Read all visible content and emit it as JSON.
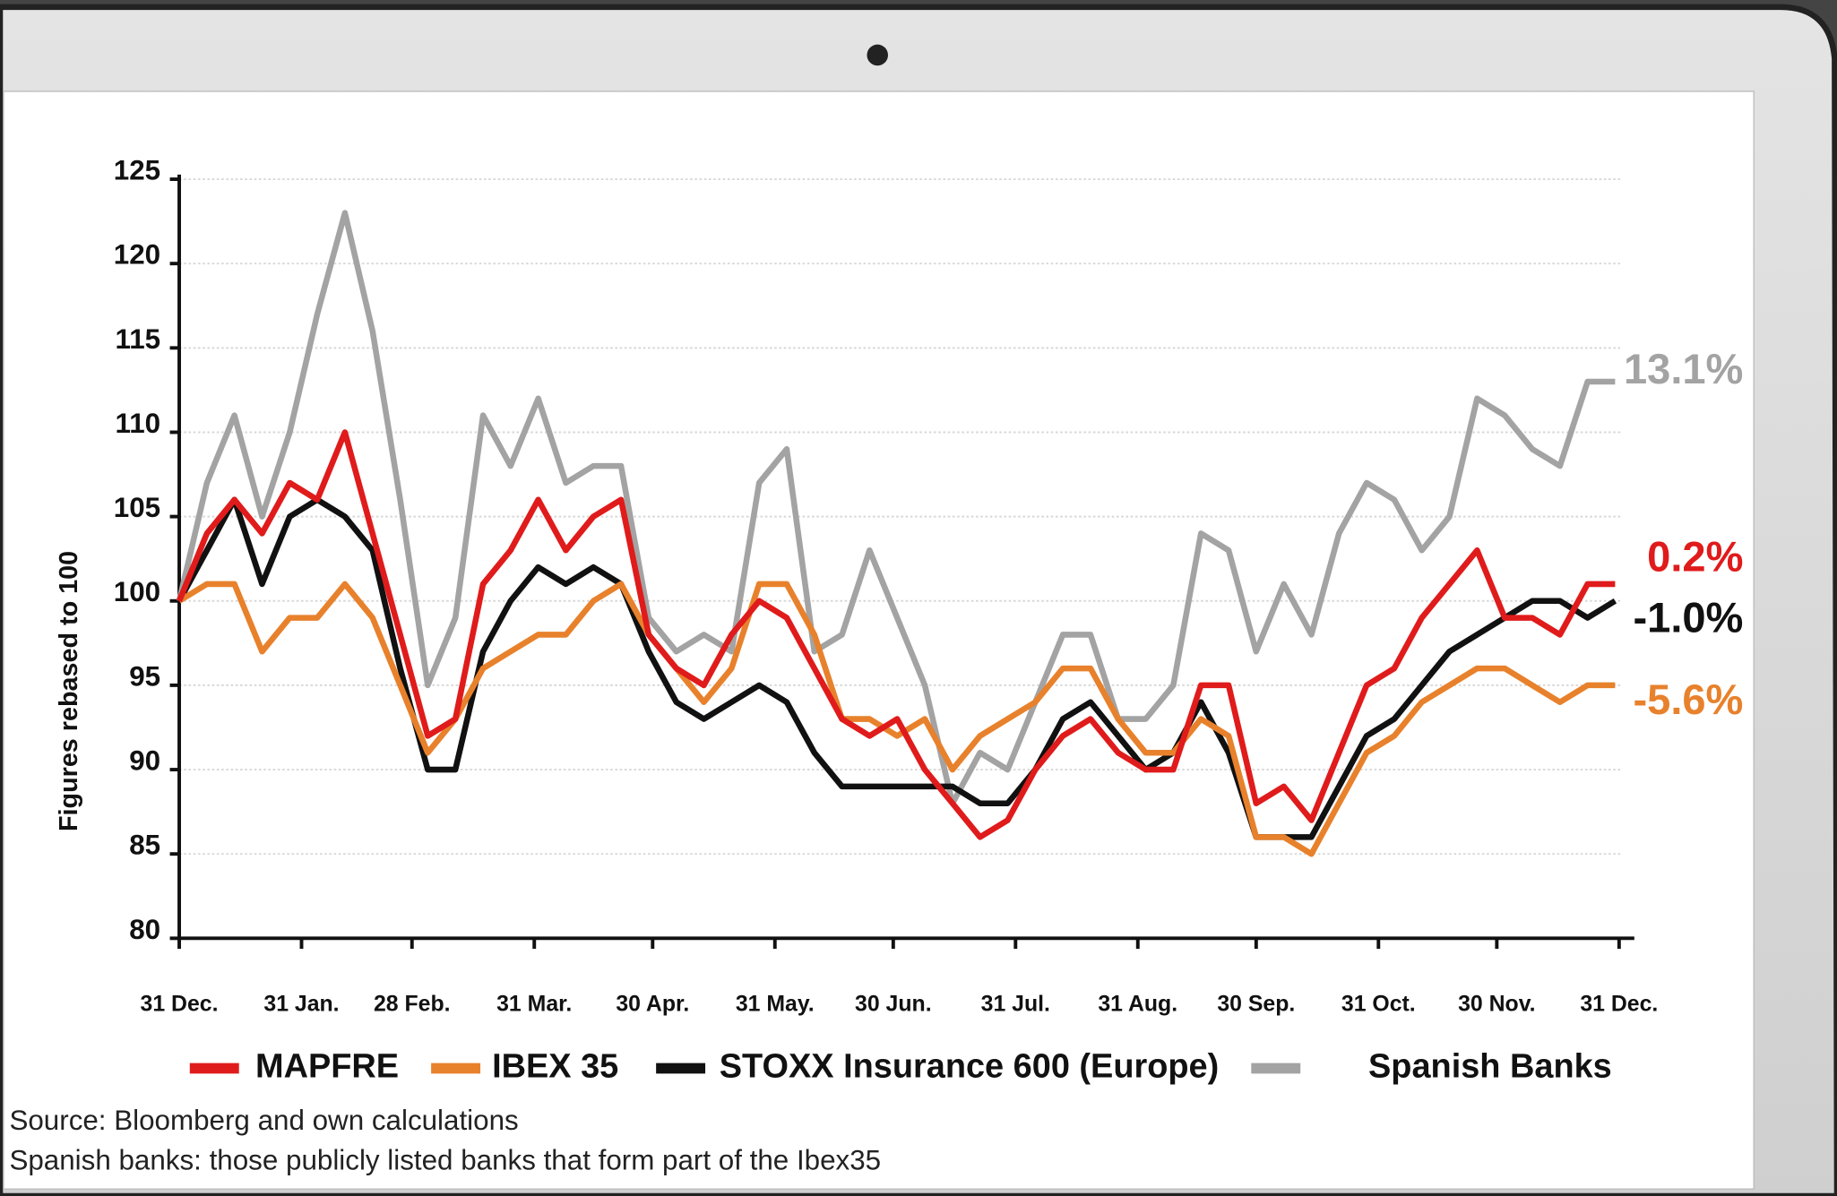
{
  "chart_data": {
    "type": "line",
    "y_label": "Figures rebased to 100",
    "x": [
      0,
      7,
      14,
      21,
      28,
      35,
      42,
      49,
      56,
      63,
      70,
      77,
      84,
      91,
      98,
      105,
      112,
      119,
      126,
      133,
      140,
      147,
      154,
      161,
      168,
      175,
      182,
      189,
      196,
      203,
      210,
      217,
      224,
      231,
      238,
      245,
      252,
      259,
      266,
      273,
      280,
      287,
      294,
      301,
      308,
      315,
      322,
      329,
      336,
      343,
      350,
      357,
      364
    ],
    "xlim": [
      0,
      365
    ],
    "xticks": [
      {
        "value": 0,
        "label": "31 Dec."
      },
      {
        "value": 31,
        "label": "31 Jan."
      },
      {
        "value": 59,
        "label": "28 Feb."
      },
      {
        "value": 90,
        "label": "31 Mar."
      },
      {
        "value": 120,
        "label": "30 Apr."
      },
      {
        "value": 151,
        "label": "31 May."
      },
      {
        "value": 181,
        "label": "30 Jun."
      },
      {
        "value": 212,
        "label": "31 Jul."
      },
      {
        "value": 243,
        "label": "31 Aug."
      },
      {
        "value": 273,
        "label": "30 Sep."
      },
      {
        "value": 304,
        "label": "31 Oct."
      },
      {
        "value": 334,
        "label": "30 Nov."
      },
      {
        "value": 365,
        "label": "31 Dec."
      }
    ],
    "ylim": [
      80,
      125
    ],
    "yticks": [
      80,
      85,
      90,
      95,
      100,
      105,
      110,
      115,
      120,
      125
    ],
    "grid": true,
    "series": [
      {
        "name": "MAPFRE",
        "color": "#e01b1b",
        "end_label": "0.2%",
        "values": [
          100,
          104,
          106,
          104,
          107,
          106,
          110,
          104,
          98,
          92,
          93,
          101,
          103,
          106,
          103,
          105,
          106,
          98,
          96,
          95,
          98,
          100,
          99,
          96,
          93,
          92,
          93,
          90,
          88,
          86,
          87,
          90,
          92,
          93,
          91,
          90,
          90,
          95,
          95,
          88,
          89,
          87,
          91,
          95,
          96,
          99,
          101,
          103,
          99,
          99,
          98,
          101,
          101
        ]
      },
      {
        "name": "IBEX 35",
        "color": "#e8812c",
        "end_label": "-5.6%",
        "values": [
          100,
          101,
          101,
          97,
          99,
          99,
          101,
          99,
          95,
          91,
          93,
          96,
          97,
          98,
          98,
          100,
          101,
          98,
          96,
          94,
          96,
          101,
          101,
          98,
          93,
          93,
          92,
          93,
          90,
          92,
          93,
          94,
          96,
          96,
          93,
          91,
          91,
          93,
          92,
          86,
          86,
          85,
          88,
          91,
          92,
          94,
          95,
          96,
          96,
          95,
          94,
          95,
          95
        ]
      },
      {
        "name": "STOXX Insurance 600 (Europe)",
        "color": "#111111",
        "end_label": "-1.0%",
        "values": [
          100,
          103,
          106,
          101,
          105,
          106,
          105,
          103,
          96,
          90,
          90,
          97,
          100,
          102,
          101,
          102,
          101,
          97,
          94,
          93,
          94,
          95,
          94,
          91,
          89,
          89,
          89,
          89,
          89,
          88,
          88,
          90,
          93,
          94,
          92,
          90,
          91,
          94,
          91,
          86,
          86,
          86,
          89,
          92,
          93,
          95,
          97,
          98,
          99,
          100,
          100,
          99,
          100
        ]
      },
      {
        "name": "Spanish Banks",
        "color": "#a3a3a3",
        "end_label": "13.1%",
        "values": [
          100,
          107,
          111,
          105,
          110,
          117,
          123,
          116,
          106,
          95,
          99,
          111,
          108,
          112,
          107,
          108,
          108,
          99,
          97,
          98,
          97,
          107,
          109,
          97,
          98,
          103,
          99,
          95,
          88,
          91,
          90,
          94,
          98,
          98,
          93,
          93,
          95,
          104,
          103,
          97,
          101,
          98,
          104,
          107,
          106,
          103,
          105,
          112,
          111,
          109,
          108,
          113,
          113
        ]
      }
    ],
    "notes": [
      "Source: Bloomberg and own calculations",
      "Spanish banks: those publicly listed banks that form part of the Ibex35"
    ]
  }
}
